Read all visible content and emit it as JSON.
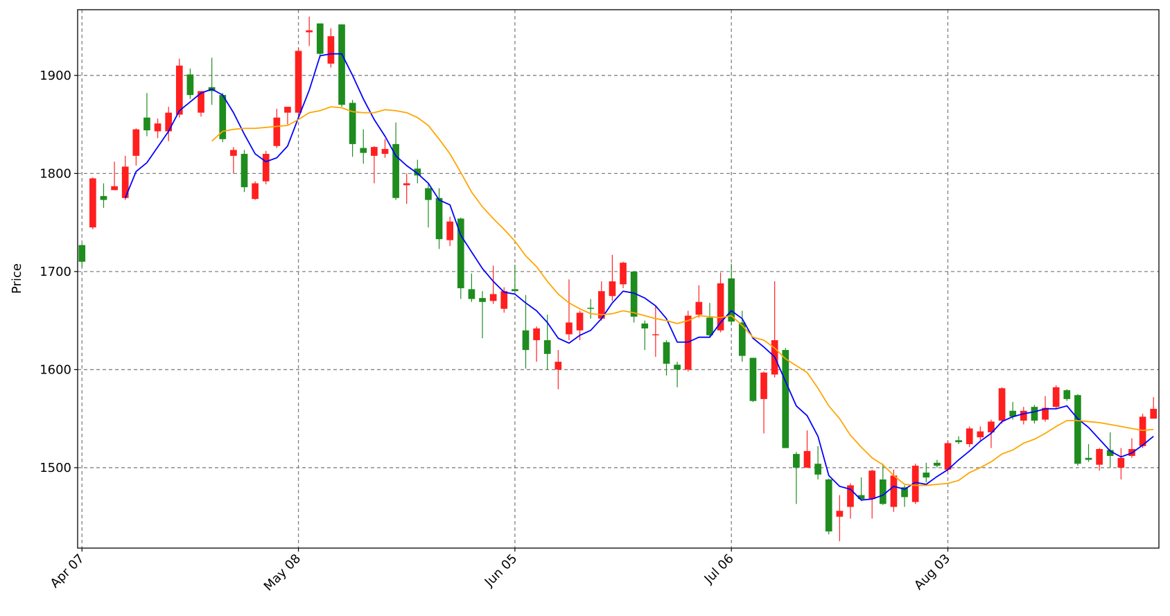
{
  "chart_data": {
    "type": "candlestick",
    "ylabel": "Price",
    "categories": [
      "Apr 07",
      null,
      null,
      null,
      null,
      null,
      null,
      null,
      null,
      null,
      null,
      null,
      null,
      null,
      null,
      null,
      null,
      null,
      null,
      null,
      "May 08",
      null,
      null,
      null,
      null,
      null,
      null,
      null,
      null,
      null,
      null,
      null,
      null,
      null,
      null,
      null,
      null,
      null,
      null,
      null,
      "Jun 05",
      null,
      null,
      null,
      null,
      null,
      null,
      null,
      null,
      null,
      null,
      null,
      null,
      null,
      null,
      null,
      null,
      null,
      null,
      null,
      "Jul 06",
      null,
      null,
      null,
      null,
      null,
      null,
      null,
      null,
      null,
      null,
      null,
      null,
      null,
      null,
      null,
      null,
      null,
      null,
      null,
      "Aug 03",
      null,
      null,
      null,
      null,
      null,
      null,
      null,
      null,
      null,
      null,
      null,
      null,
      null,
      null,
      null,
      null,
      null,
      null,
      null
    ],
    "open": [
      1727,
      1745,
      1777,
      1783,
      1775,
      1818,
      1857,
      1843,
      1843,
      1860,
      1901,
      1862,
      1888,
      1880,
      1818,
      1820,
      1774,
      1792,
      1828,
      1862,
      1862,
      1944,
      1953,
      1912,
      1952,
      1872,
      1826,
      1818,
      1820,
      1830,
      1788,
      1805,
      1785,
      1775,
      1732,
      1754,
      1682,
      1673,
      1670,
      1662,
      1682,
      1640,
      1630,
      1630,
      1600,
      1636,
      1640,
      1663,
      1652,
      1675,
      1687,
      1700,
      1647,
      1635,
      1628,
      1605,
      1600,
      1656,
      1653,
      1640,
      1693,
      1648,
      1612,
      1570,
      1595,
      1620,
      1514,
      1500,
      1504,
      1488,
      1450,
      1460,
      1472,
      1468,
      1488,
      1460,
      1480,
      1465,
      1495,
      1505,
      1498,
      1528,
      1524,
      1531,
      1536,
      1548,
      1558,
      1548,
      1562,
      1549,
      1562,
      1579,
      1574,
      1510,
      1503,
      1518,
      1500,
      1512,
      1522,
      1550
    ],
    "high": [
      1728,
      1796,
      1790,
      1812,
      1818,
      1846,
      1882,
      1856,
      1868,
      1917,
      1907,
      1884,
      1918,
      1882,
      1827,
      1824,
      1792,
      1823,
      1866,
      1868,
      1928,
      1960,
      1953,
      1948,
      1952,
      1875,
      1845,
      1828,
      1835,
      1852,
      1800,
      1814,
      1790,
      1785,
      1756,
      1755,
      1698,
      1680,
      1706,
      1684,
      1707,
      1676,
      1644,
      1656,
      1620,
      1692,
      1660,
      1672,
      1690,
      1717,
      1710,
      1700,
      1650,
      1665,
      1630,
      1608,
      1660,
      1686,
      1668,
      1699,
      1708,
      1660,
      1612,
      1598,
      1690,
      1622,
      1516,
      1538,
      1522,
      1489,
      1472,
      1484,
      1490,
      1498,
      1504,
      1498,
      1482,
      1504,
      1505,
      1508,
      1527,
      1532,
      1542,
      1542,
      1549,
      1582,
      1567,
      1562,
      1564,
      1573,
      1584,
      1580,
      1575,
      1524,
      1520,
      1536,
      1520,
      1530,
      1555,
      1572
    ],
    "low": [
      1705,
      1743,
      1765,
      1783,
      1773,
      1808,
      1838,
      1836,
      1833,
      1857,
      1876,
      1858,
      1870,
      1832,
      1800,
      1781,
      1773,
      1789,
      1826,
      1850,
      1858,
      1930,
      1918,
      1908,
      1868,
      1817,
      1810,
      1790,
      1816,
      1773,
      1769,
      1790,
      1745,
      1723,
      1726,
      1672,
      1669,
      1632,
      1667,
      1658,
      1680,
      1601,
      1608,
      1600,
      1580,
      1630,
      1630,
      1652,
      1650,
      1670,
      1683,
      1648,
      1620,
      1613,
      1594,
      1582,
      1598,
      1653,
      1633,
      1638,
      1645,
      1608,
      1567,
      1535,
      1592,
      1520,
      1463,
      1500,
      1488,
      1432,
      1425,
      1448,
      1466,
      1448,
      1462,
      1455,
      1460,
      1463,
      1485,
      1500,
      1496,
      1524,
      1521,
      1528,
      1520,
      1545,
      1549,
      1544,
      1545,
      1547,
      1560,
      1568,
      1502,
      1506,
      1497,
      1500,
      1488,
      1510,
      1520,
      1550
    ],
    "close": [
      1710,
      1795,
      1773,
      1787,
      1807,
      1845,
      1844,
      1851,
      1862,
      1910,
      1880,
      1884,
      1884,
      1835,
      1824,
      1786,
      1790,
      1820,
      1857,
      1868,
      1925,
      1946,
      1922,
      1940,
      1870,
      1830,
      1821,
      1827,
      1825,
      1775,
      1790,
      1798,
      1773,
      1733,
      1751,
      1683,
      1672,
      1669,
      1677,
      1680,
      1680,
      1620,
      1642,
      1616,
      1608,
      1648,
      1658,
      1662,
      1680,
      1690,
      1709,
      1654,
      1642,
      1636,
      1606,
      1600,
      1655,
      1669,
      1635,
      1688,
      1649,
      1614,
      1568,
      1597,
      1630,
      1520,
      1500,
      1517,
      1493,
      1435,
      1456,
      1482,
      1468,
      1497,
      1463,
      1492,
      1470,
      1502,
      1490,
      1502,
      1525,
      1526,
      1540,
      1537,
      1547,
      1581,
      1552,
      1558,
      1548,
      1561,
      1582,
      1570,
      1504,
      1508,
      1519,
      1512,
      1510,
      1519,
      1552,
      1560
    ],
    "up_color": "#ff1f1f",
    "down_color": "#1e8c1e",
    "lines": [
      {
        "color": "#0000ff",
        "values": [
          null,
          null,
          null,
          null,
          1775,
          1802,
          1811,
          1827,
          1843,
          1864,
          1873,
          1882,
          1886,
          1880,
          1862,
          1840,
          1820,
          1812,
          1816,
          1828,
          1857,
          1885,
          1920,
          1922,
          1922,
          1900,
          1876,
          1855,
          1838,
          1818,
          1808,
          1800,
          1790,
          1773,
          1768,
          1737,
          1720,
          1703,
          1690,
          1679,
          1677,
          1668,
          1660,
          1648,
          1632,
          1627,
          1635,
          1640,
          1652,
          1668,
          1680,
          1678,
          1673,
          1665,
          1652,
          1628,
          1628,
          1633,
          1633,
          1648,
          1660,
          1652,
          1632,
          1623,
          1613,
          1588,
          1563,
          1553,
          1532,
          1492,
          1481,
          1478,
          1467,
          1468,
          1472,
          1481,
          1478,
          1485,
          1483,
          1491,
          1498,
          1508,
          1517,
          1527,
          1535,
          1547,
          1552,
          1555,
          1557,
          1560,
          1560,
          1563,
          1550,
          1541,
          1529,
          1517,
          1511,
          1515,
          1523,
          1532
        ]
      },
      {
        "color": "#ffa500",
        "values": [
          null,
          null,
          null,
          null,
          null,
          null,
          null,
          null,
          null,
          null,
          null,
          null,
          1833,
          1843,
          1845,
          1846,
          1846,
          1847,
          1848,
          1849,
          1855,
          1862,
          1864,
          1868,
          1867,
          1863,
          1862,
          1862,
          1865,
          1864,
          1862,
          1857,
          1849,
          1835,
          1820,
          1801,
          1781,
          1766,
          1754,
          1743,
          1731,
          1716,
          1705,
          1690,
          1677,
          1668,
          1662,
          1657,
          1656,
          1657,
          1660,
          1658,
          1655,
          1652,
          1650,
          1647,
          1650,
          1655,
          1654,
          1653,
          1655,
          1645,
          1633,
          1630,
          1622,
          1611,
          1604,
          1597,
          1581,
          1563,
          1550,
          1533,
          1521,
          1510,
          1503,
          1492,
          1483,
          1482,
          1482,
          1483,
          1484,
          1487,
          1495,
          1500,
          1506,
          1514,
          1518,
          1525,
          1529,
          1535,
          1542,
          1548,
          1548,
          1547,
          1546,
          1544,
          1542,
          1540,
          1538,
          1539
        ]
      }
    ],
    "xlim": [
      -0.4,
      99.5
    ],
    "ylim": [
      1418,
      1967
    ],
    "yticks": [
      1500,
      1600,
      1700,
      1800,
      1900
    ],
    "grid": true
  }
}
